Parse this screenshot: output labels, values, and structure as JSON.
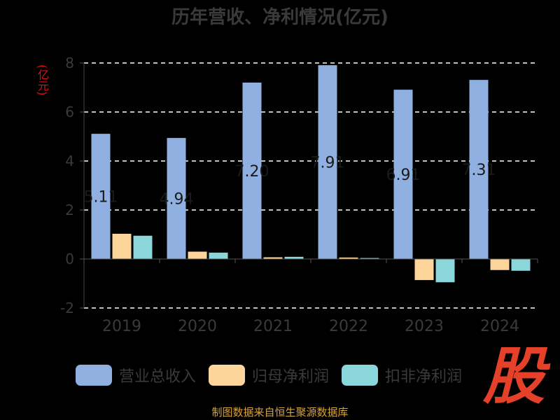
{
  "title": "历年营收、净利情况(亿元)",
  "unit_label": "(亿元)",
  "source": "制图数据来自恒生聚源数据库",
  "logo_text": "股",
  "chart_data": {
    "type": "bar",
    "title": "历年营收、净利情况(亿元)",
    "ylabel": "(亿元)",
    "xlabel": "",
    "categories": [
      "2019",
      "2020",
      "2021",
      "2022",
      "2023",
      "2024"
    ],
    "ylim": [
      -2,
      8
    ],
    "yticks": [
      -2,
      0,
      2,
      4,
      6,
      8
    ],
    "grid": true,
    "legend_position": "bottom",
    "series": [
      {
        "name": "营业总收入",
        "color": "#8fb0e0",
        "values": [
          5.11,
          4.94,
          7.2,
          7.91,
          6.91,
          7.31
        ],
        "labels": [
          "5.11",
          "4.94",
          "7.20",
          "7.91",
          "6.91",
          "7.31"
        ]
      },
      {
        "name": "归母净利润",
        "color": "#fdd59b",
        "values": [
          1.03,
          0.3,
          0.07,
          0.06,
          -0.86,
          -0.45
        ]
      },
      {
        "name": "扣非净利润",
        "color": "#8ad6da",
        "values": [
          0.95,
          0.26,
          0.09,
          0.04,
          -0.95,
          -0.48
        ]
      }
    ]
  }
}
